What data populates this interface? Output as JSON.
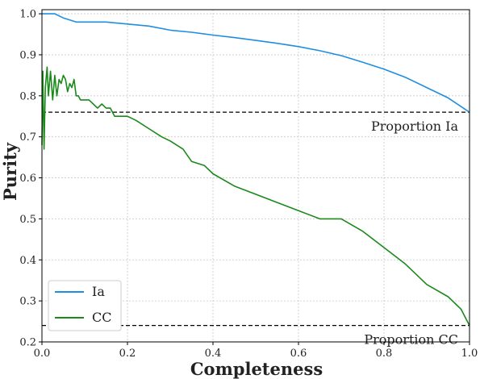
{
  "chart_data": {
    "type": "line",
    "xlabel": "Completeness",
    "ylabel": "Purity",
    "xlim": [
      0.0,
      1.0
    ],
    "ylim": [
      0.2,
      1.01
    ],
    "xticks": [
      "0.0",
      "0.2",
      "0.4",
      "0.6",
      "0.8",
      "1.0"
    ],
    "yticks": [
      "0.2",
      "0.3",
      "0.4",
      "0.5",
      "0.6",
      "0.7",
      "0.8",
      "0.9",
      "1.0"
    ],
    "grid": true,
    "legend": "bottom-left",
    "series": [
      {
        "name": "Ia",
        "color": "#1f8ee0",
        "x": [
          0.0,
          0.03,
          0.05,
          0.08,
          0.12,
          0.15,
          0.2,
          0.25,
          0.3,
          0.35,
          0.4,
          0.45,
          0.5,
          0.55,
          0.6,
          0.65,
          0.7,
          0.75,
          0.8,
          0.85,
          0.9,
          0.95,
          1.0
        ],
        "y": [
          1.0,
          1.0,
          0.99,
          0.98,
          0.98,
          0.98,
          0.975,
          0.97,
          0.96,
          0.955,
          0.948,
          0.942,
          0.935,
          0.928,
          0.92,
          0.91,
          0.898,
          0.882,
          0.865,
          0.845,
          0.82,
          0.795,
          0.76
        ]
      },
      {
        "name": "CC",
        "color": "#1a8a1a",
        "x": [
          0.0,
          0.002,
          0.005,
          0.008,
          0.012,
          0.015,
          0.02,
          0.025,
          0.03,
          0.035,
          0.04,
          0.045,
          0.05,
          0.055,
          0.06,
          0.065,
          0.07,
          0.075,
          0.08,
          0.085,
          0.09,
          0.1,
          0.11,
          0.12,
          0.13,
          0.14,
          0.15,
          0.16,
          0.17,
          0.18,
          0.2,
          0.22,
          0.25,
          0.28,
          0.3,
          0.33,
          0.35,
          0.38,
          0.4,
          0.45,
          0.5,
          0.55,
          0.6,
          0.65,
          0.7,
          0.75,
          0.8,
          0.85,
          0.9,
          0.95,
          0.98,
          1.0
        ],
        "y": [
          0.68,
          0.86,
          0.67,
          0.82,
          0.87,
          0.8,
          0.86,
          0.79,
          0.85,
          0.8,
          0.84,
          0.83,
          0.85,
          0.84,
          0.81,
          0.83,
          0.82,
          0.84,
          0.8,
          0.8,
          0.79,
          0.79,
          0.79,
          0.78,
          0.77,
          0.78,
          0.77,
          0.77,
          0.75,
          0.75,
          0.75,
          0.74,
          0.72,
          0.7,
          0.69,
          0.67,
          0.64,
          0.63,
          0.61,
          0.58,
          0.56,
          0.54,
          0.52,
          0.5,
          0.5,
          0.47,
          0.43,
          0.39,
          0.34,
          0.31,
          0.28,
          0.24
        ]
      }
    ],
    "reference_lines": [
      {
        "y": 0.76,
        "label": "Proportion Ia",
        "style": "dashed",
        "color": "#000000"
      },
      {
        "y": 0.24,
        "label": "Proportion CC",
        "style": "dashed",
        "color": "#000000"
      }
    ]
  }
}
